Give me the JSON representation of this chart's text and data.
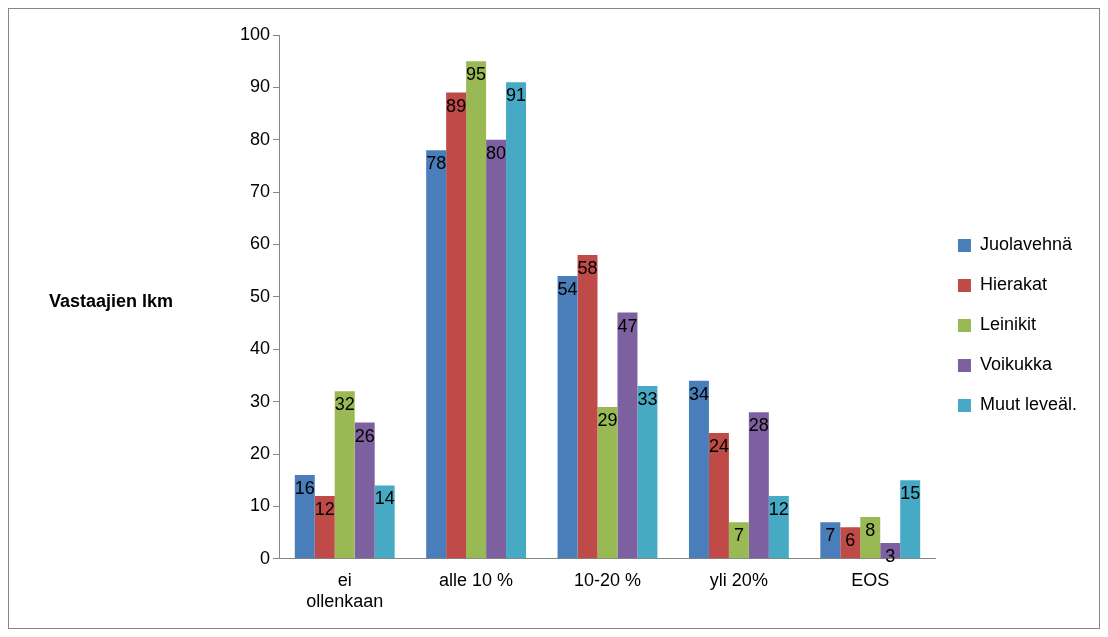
{
  "chart_data": {
    "type": "bar",
    "ylabel": "Vastaajien lkm",
    "categories": [
      "ei ollenkaan",
      "alle 10 %",
      "10-20 %",
      "yli 20%",
      "EOS"
    ],
    "series": [
      {
        "name": "Juolavehnä",
        "color": "#4a7ebb",
        "values": [
          16,
          78,
          54,
          34,
          7
        ]
      },
      {
        "name": "Hierakat",
        "color": "#be4b48",
        "values": [
          12,
          89,
          58,
          24,
          6
        ]
      },
      {
        "name": "Leinikit",
        "color": "#98b954",
        "values": [
          32,
          95,
          29,
          7,
          8
        ]
      },
      {
        "name": "Voikukka",
        "color": "#7d60a0",
        "values": [
          26,
          80,
          47,
          28,
          3
        ]
      },
      {
        "name": "Muut leveäl.",
        "color": "#46aac5",
        "values": [
          14,
          91,
          33,
          12,
          15
        ]
      }
    ],
    "ylim": [
      0,
      100
    ],
    "yticks": [
      0,
      10,
      20,
      30,
      40,
      50,
      60,
      70,
      80,
      90,
      100
    ],
    "grid": false,
    "legend": "right",
    "data_labels": true
  }
}
